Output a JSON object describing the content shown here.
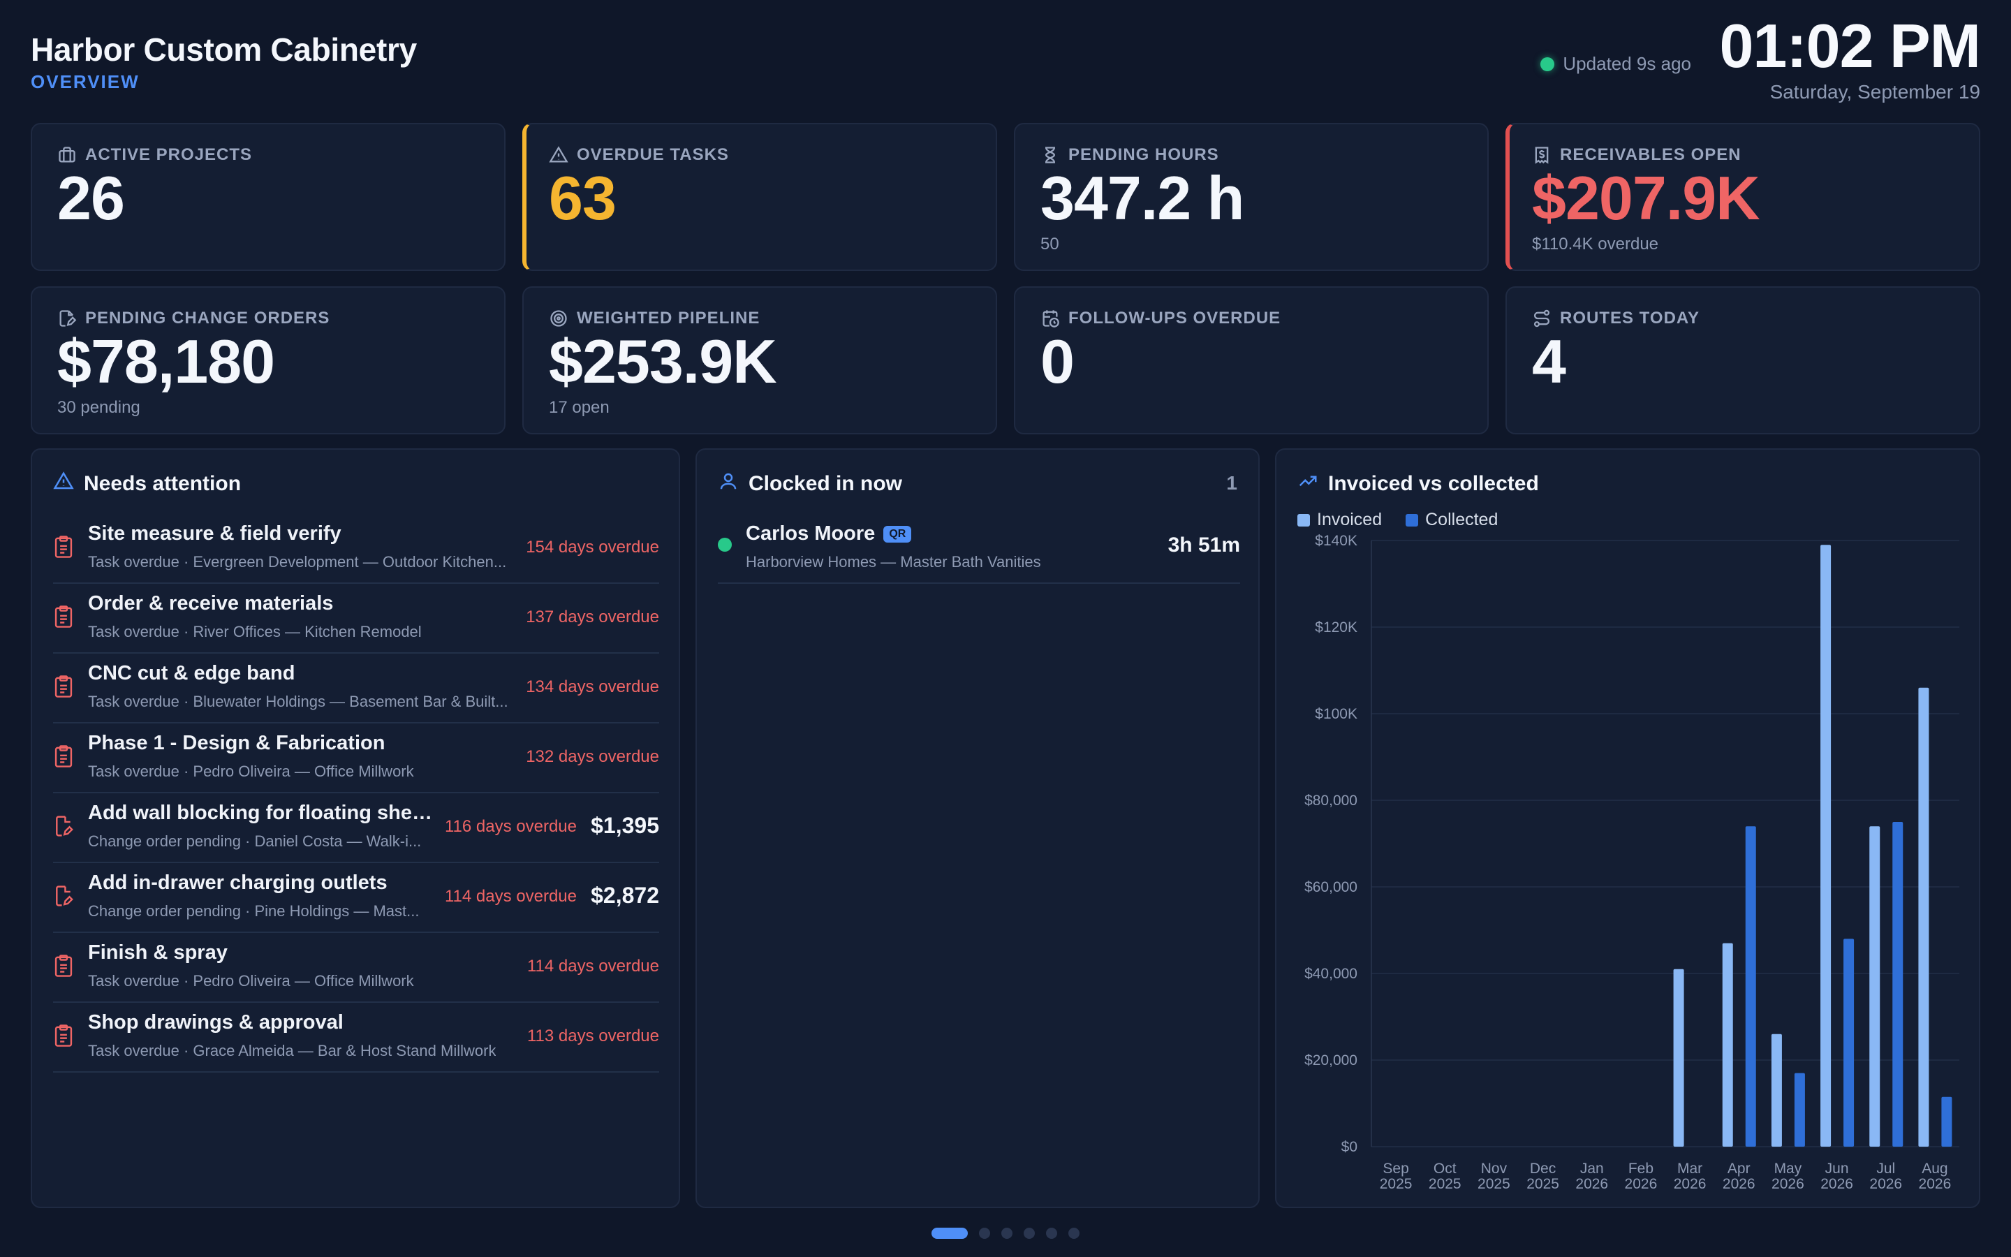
{
  "header": {
    "company": "Harbor Custom Cabinetry",
    "subtitle": "OVERVIEW",
    "updated": "Updated 9s ago",
    "clock": "01:02 PM",
    "date": "Saturday, September 19"
  },
  "kpis": [
    {
      "label": "ACTIVE PROJECTS",
      "value": "26",
      "sub": "",
      "icon": "briefcase-icon"
    },
    {
      "label": "OVERDUE TASKS",
      "value": "63",
      "sub": "",
      "icon": "alert-triangle-icon"
    },
    {
      "label": "PENDING HOURS",
      "value": "347.2 h",
      "sub": "50",
      "icon": "hourglass-icon"
    },
    {
      "label": "RECEIVABLES OPEN",
      "value": "$207.9K",
      "sub": "$110.4K overdue",
      "icon": "receipt-dollar-icon"
    },
    {
      "label": "PENDING CHANGE ORDERS",
      "value": "$78,180",
      "sub": "30 pending",
      "icon": "file-edit-icon"
    },
    {
      "label": "WEIGHTED PIPELINE",
      "value": "$253.9K",
      "sub": "17 open",
      "icon": "target-icon"
    },
    {
      "label": "FOLLOW-UPS OVERDUE",
      "value": "0",
      "sub": "",
      "icon": "calendar-clock-icon"
    },
    {
      "label": "ROUTES TODAY",
      "value": "4",
      "sub": "",
      "icon": "route-icon"
    }
  ],
  "colors": {
    "accent": "#4f8ff7",
    "warning": "#f5b530",
    "danger": "#ef6565",
    "success": "#28c98a",
    "invoiced": "#8ab8f5",
    "collected": "#2f6fd8"
  },
  "attention": {
    "title": "Needs attention",
    "items": [
      {
        "title": "Site measure & field verify",
        "sub": "Task overdue · Evergreen Development — Outdoor Kitchen...",
        "overdue": "154 days overdue",
        "amount": "",
        "icon": "clipboard-icon"
      },
      {
        "title": "Order & receive materials",
        "sub": "Task overdue · River Offices — Kitchen Remodel",
        "overdue": "137 days overdue",
        "amount": "",
        "icon": "clipboard-icon"
      },
      {
        "title": "CNC cut & edge band",
        "sub": "Task overdue · Bluewater Holdings — Basement Bar & Built...",
        "overdue": "134 days overdue",
        "amount": "",
        "icon": "clipboard-icon"
      },
      {
        "title": "Phase 1 - Design & Fabrication",
        "sub": "Task overdue · Pedro Oliveira — Office Millwork",
        "overdue": "132 days overdue",
        "amount": "",
        "icon": "clipboard-icon"
      },
      {
        "title": "Add wall blocking for floating shelv...",
        "sub": "Change order pending · Daniel Costa — Walk-i...",
        "overdue": "116 days overdue",
        "amount": "$1,395",
        "icon": "file-edit-icon"
      },
      {
        "title": "Add in-drawer charging outlets",
        "sub": "Change order pending · Pine Holdings — Mast...",
        "overdue": "114 days overdue",
        "amount": "$2,872",
        "icon": "file-edit-icon"
      },
      {
        "title": "Finish & spray",
        "sub": "Task overdue · Pedro Oliveira — Office Millwork",
        "overdue": "114 days overdue",
        "amount": "",
        "icon": "clipboard-icon"
      },
      {
        "title": "Shop drawings & approval",
        "sub": "Task overdue · Grace Almeida — Bar & Host Stand Millwork",
        "overdue": "113 days overdue",
        "amount": "",
        "icon": "clipboard-icon"
      }
    ]
  },
  "clocked": {
    "title": "Clocked in now",
    "count": "1",
    "people": [
      {
        "name": "Carlos Moore",
        "badge": "QR",
        "sub": "Harborview Homes — Master Bath Vanities",
        "duration": "3h 51m"
      }
    ]
  },
  "chart_title": "Invoiced vs collected",
  "chart_data": {
    "type": "bar",
    "title": "Invoiced vs collected",
    "categories": [
      "Sep 2025",
      "Oct 2025",
      "Nov 2025",
      "Dec 2025",
      "Jan 2026",
      "Feb 2026",
      "Mar 2026",
      "Apr 2026",
      "May 2026",
      "Jun 2026",
      "Jul 2026",
      "Aug 2026"
    ],
    "category_lines": [
      [
        "Sep",
        "2025"
      ],
      [
        "Oct",
        "2025"
      ],
      [
        "Nov",
        "2025"
      ],
      [
        "Dec",
        "2025"
      ],
      [
        "Jan",
        "2026"
      ],
      [
        "Feb",
        "2026"
      ],
      [
        "Mar",
        "2026"
      ],
      [
        "Apr",
        "2026"
      ],
      [
        "May",
        "2026"
      ],
      [
        "Jun",
        "2026"
      ],
      [
        "Jul",
        "2026"
      ],
      [
        "Aug",
        "2026"
      ]
    ],
    "series": [
      {
        "name": "Invoiced",
        "values": [
          0,
          0,
          0,
          0,
          0,
          0,
          41000,
          47000,
          26000,
          139000,
          74000,
          106000
        ]
      },
      {
        "name": "Collected",
        "values": [
          0,
          0,
          0,
          0,
          0,
          0,
          0,
          74000,
          17000,
          48000,
          75000,
          11500
        ]
      }
    ],
    "ylim": [
      0,
      140000
    ],
    "yticks": [
      0,
      20000,
      40000,
      60000,
      80000,
      100000,
      120000,
      140000
    ],
    "ytick_labels": [
      "$0",
      "$20,000",
      "$40,000",
      "$60,000",
      "$80,000",
      "$100K",
      "$120K",
      "$140K"
    ],
    "grid": true,
    "legend": "top-left"
  },
  "pager": {
    "count": 6,
    "active": 0
  }
}
